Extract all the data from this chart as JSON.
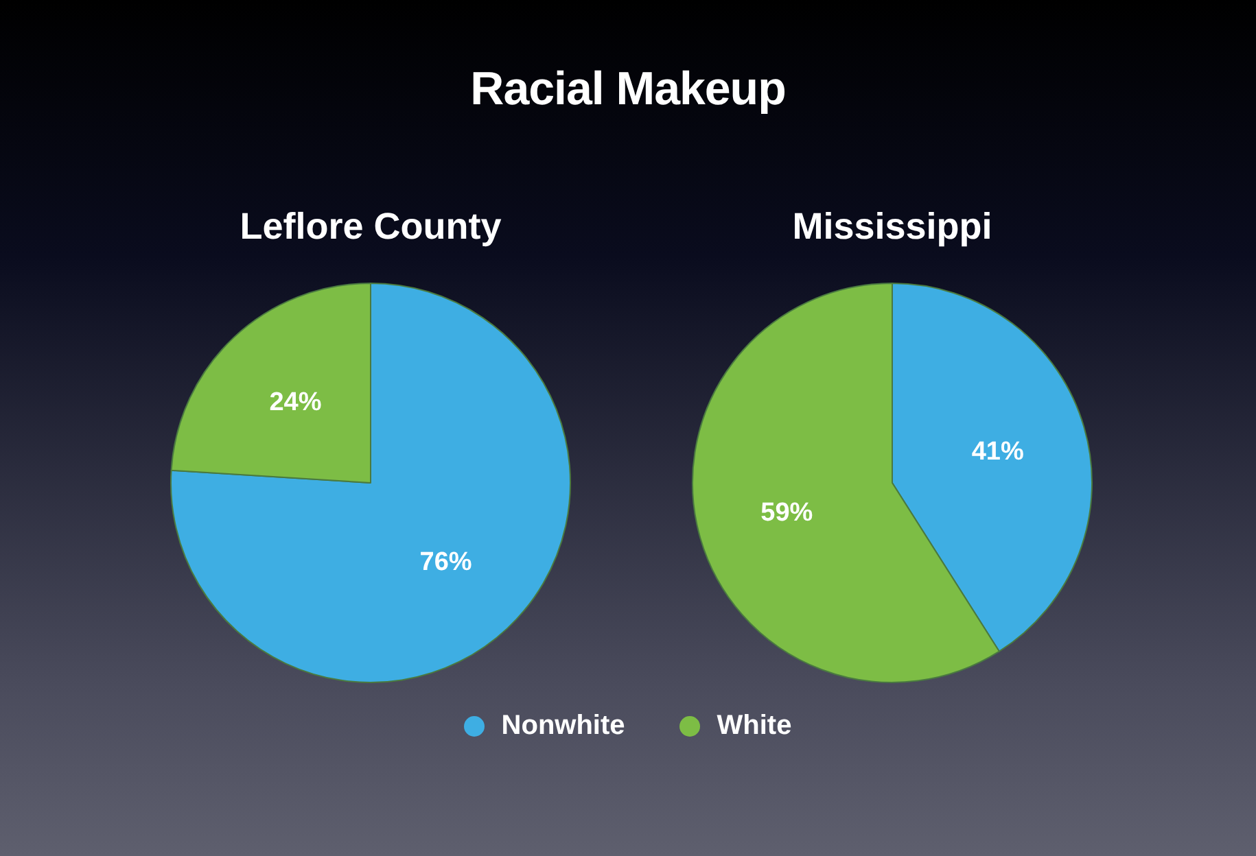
{
  "chart_data": [
    {
      "type": "other",
      "title": "Racial Makeup"
    },
    {
      "type": "pie",
      "title": "Leflore County",
      "categories": [
        "Nonwhite",
        "White"
      ],
      "values": [
        76,
        24
      ],
      "colors": [
        "#3eaee3",
        "#7dbd45"
      ],
      "value_labels": [
        "76%",
        "24%"
      ],
      "legend": "bottom"
    },
    {
      "type": "pie",
      "title": "Mississippi",
      "categories": [
        null,
        null
      ],
      "values": [
        41,
        59
      ],
      "colors": [
        "#3eaee3",
        "#7dbd45"
      ],
      "value_labels": [
        "41%",
        "59%"
      ]
    }
  ]
}
